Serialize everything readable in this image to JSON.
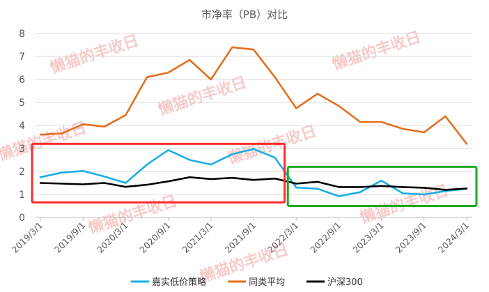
{
  "chart_data": {
    "type": "line",
    "title": "市净率（PB）对比",
    "xlabel": "",
    "ylabel": "",
    "ylim": [
      0,
      8
    ],
    "yticks": [
      0,
      1,
      2,
      3,
      4,
      5,
      6,
      7,
      8
    ],
    "grid": "horizontal",
    "legend_position": "bottom",
    "x_tick_labels": [
      "2019/3/1",
      "2019/9/1",
      "2020/3/1",
      "2020/9/1",
      "2021/3/1",
      "2021/9/1",
      "2022/3/1",
      "2022/9/1",
      "2023/3/1",
      "2023/9/1",
      "2024/3/1"
    ],
    "x": [
      "2019/3/1",
      "2019/6/1",
      "2019/9/1",
      "2019/12/1",
      "2020/3/1",
      "2020/6/1",
      "2020/9/1",
      "2020/12/1",
      "2021/3/1",
      "2021/6/1",
      "2021/9/1",
      "2021/12/1",
      "2022/3/1",
      "2022/6/1",
      "2022/9/1",
      "2022/12/1",
      "2023/3/1",
      "2023/6/1",
      "2023/9/1",
      "2023/12/1",
      "2024/3/1"
    ],
    "series": [
      {
        "name": "嘉实低价策略",
        "color": "#1aaee5",
        "values": [
          1.75,
          1.95,
          2.02,
          1.78,
          1.5,
          2.3,
          2.93,
          2.5,
          2.3,
          2.75,
          2.98,
          2.6,
          1.3,
          1.25,
          0.92,
          1.1,
          1.6,
          1.05,
          1.0,
          1.15,
          1.25
        ]
      },
      {
        "name": "同类平均",
        "color": "#e2701f",
        "values": [
          3.6,
          3.65,
          4.05,
          3.95,
          4.45,
          6.1,
          6.3,
          6.85,
          6.0,
          7.4,
          7.3,
          6.1,
          4.75,
          5.38,
          4.85,
          4.15,
          4.15,
          3.85,
          3.7,
          4.4,
          3.2
        ]
      },
      {
        "name": "沪深300",
        "color": "#000000",
        "values": [
          1.5,
          1.47,
          1.44,
          1.5,
          1.33,
          1.42,
          1.57,
          1.75,
          1.67,
          1.72,
          1.63,
          1.69,
          1.47,
          1.55,
          1.32,
          1.32,
          1.37,
          1.32,
          1.29,
          1.2,
          1.26
        ]
      }
    ],
    "annotations": [
      {
        "shape": "rectangle",
        "color": "#ff2b2b",
        "x_from": "2019/3/1",
        "x_to": "2021/12/1",
        "y_from": 0.65,
        "y_to": 3.2
      },
      {
        "shape": "rectangle",
        "color": "#1faa1f",
        "x_from": "2022/3/1",
        "x_to": "2024/3/1",
        "y_from": 0.5,
        "y_to": 2.2
      }
    ],
    "watermark": "懒猫的丰收日"
  }
}
